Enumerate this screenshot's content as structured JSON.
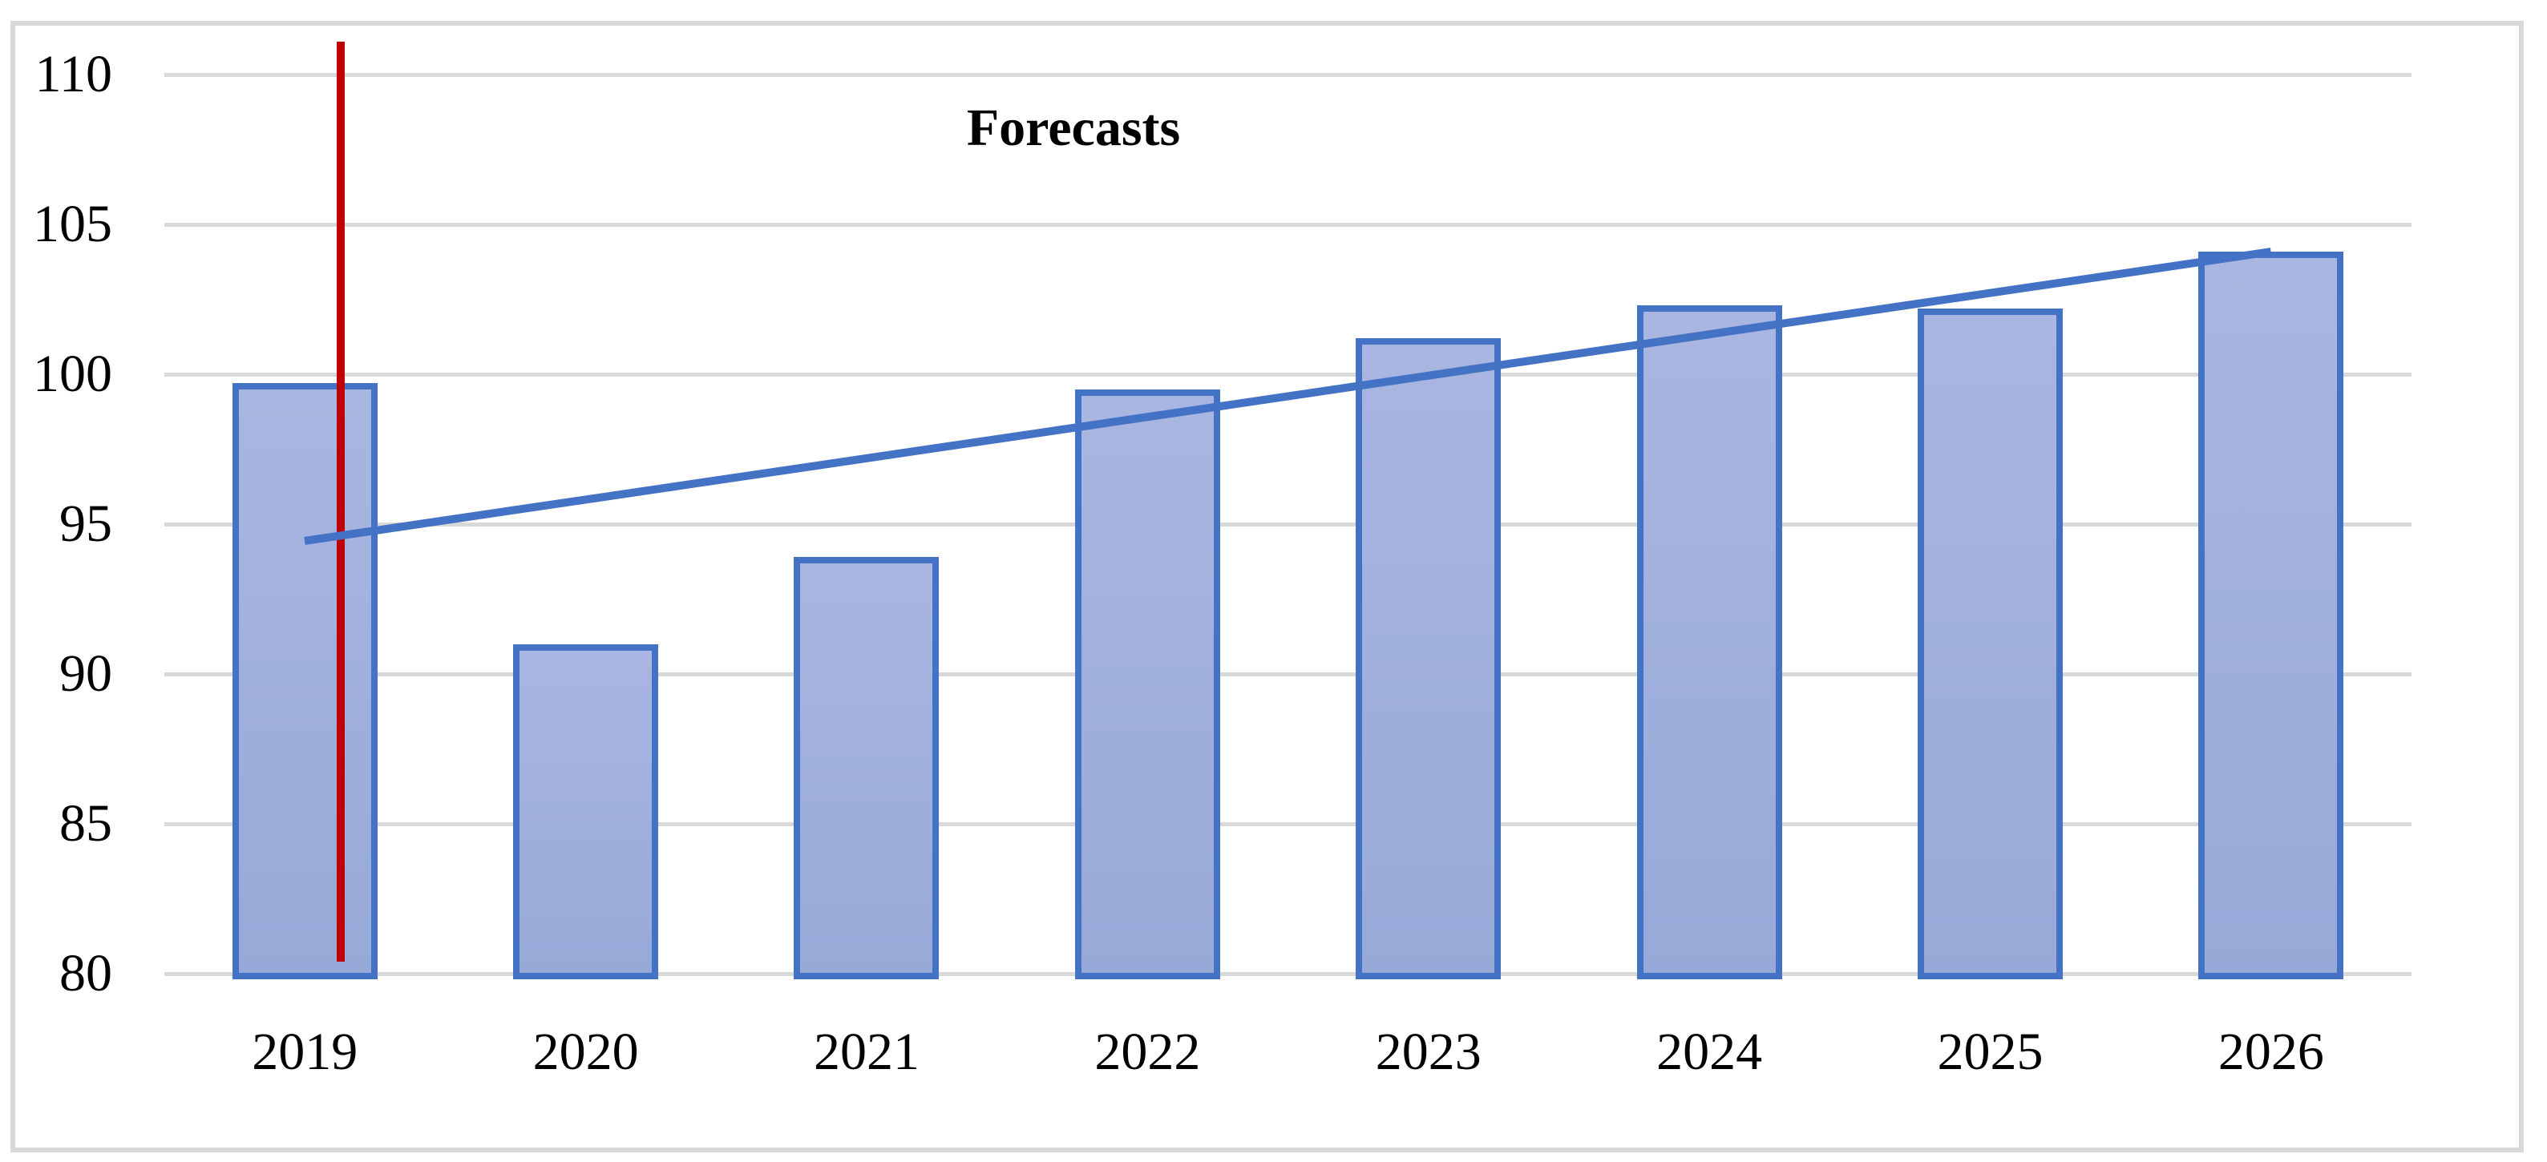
{
  "chart_data": {
    "type": "bar",
    "title": "Forecasts",
    "categories": [
      "2019",
      "2020",
      "2021",
      "2022",
      "2023",
      "2024",
      "2025",
      "2026"
    ],
    "values": [
      99.7,
      91.0,
      93.9,
      99.5,
      101.2,
      102.3,
      102.2,
      104.1
    ],
    "xlabel": "",
    "ylabel": "",
    "yticks": [
      80,
      85,
      90,
      95,
      100,
      105,
      110
    ],
    "ylim": [
      80,
      111.6
    ],
    "grid": true,
    "legend_position": "none",
    "trendline": {
      "start_category": "2019",
      "start_value": 94.45,
      "end_category": "2026",
      "end_value": 104.1
    },
    "vertical_marker": {
      "at_category": "2019",
      "slot_fraction": 0.628,
      "value_from": 80.4,
      "value_to": 111.1
    },
    "colors": {
      "bar_fill_top": "#A9B6E1",
      "bar_fill_bottom": "#97A9D8",
      "bar_border": "#4472C4",
      "trendline": "#4472C4",
      "marker": "#C00000",
      "gridline": "#D9D9D9",
      "frame": "#D9D9D9",
      "text": "#000000"
    }
  }
}
